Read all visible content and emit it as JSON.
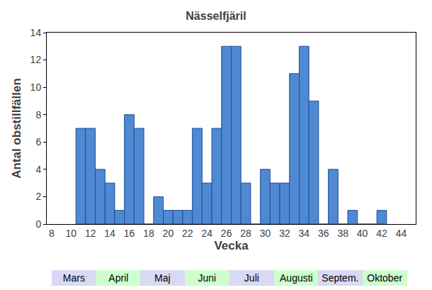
{
  "chart_data": {
    "type": "bar",
    "title": "Nässelfjäril",
    "x_label": "Vecka",
    "y_label": "Antal obstillfällen",
    "x": [
      11,
      12,
      13,
      14,
      15,
      16,
      17,
      18,
      19,
      20,
      21,
      22,
      23,
      24,
      25,
      26,
      27,
      28,
      29,
      30,
      31,
      32,
      33,
      34,
      35,
      36,
      37,
      38,
      39,
      40,
      41,
      42
    ],
    "values": [
      7,
      7,
      4,
      3,
      1,
      8,
      7,
      0,
      2,
      1,
      1,
      1,
      7,
      3,
      7,
      13,
      13,
      3,
      0,
      4,
      3,
      3,
      11,
      13,
      9,
      0,
      4,
      0,
      1,
      0,
      0,
      1
    ],
    "color": "#4f89d2",
    "xlim": [
      7.5,
      45.5
    ],
    "xticks": [
      8,
      10,
      12,
      14,
      16,
      18,
      20,
      22,
      24,
      26,
      28,
      30,
      32,
      34,
      36,
      38,
      40,
      42,
      44
    ],
    "ylim": [
      0,
      14
    ],
    "yticks": [
      0,
      2,
      4,
      6,
      8,
      10,
      12,
      14
    ],
    "grid": false,
    "month_labels": [
      "Mars",
      "April",
      "Maj",
      "Juni",
      "Juli",
      "Augusti",
      "Septem.",
      "Oktober"
    ]
  }
}
